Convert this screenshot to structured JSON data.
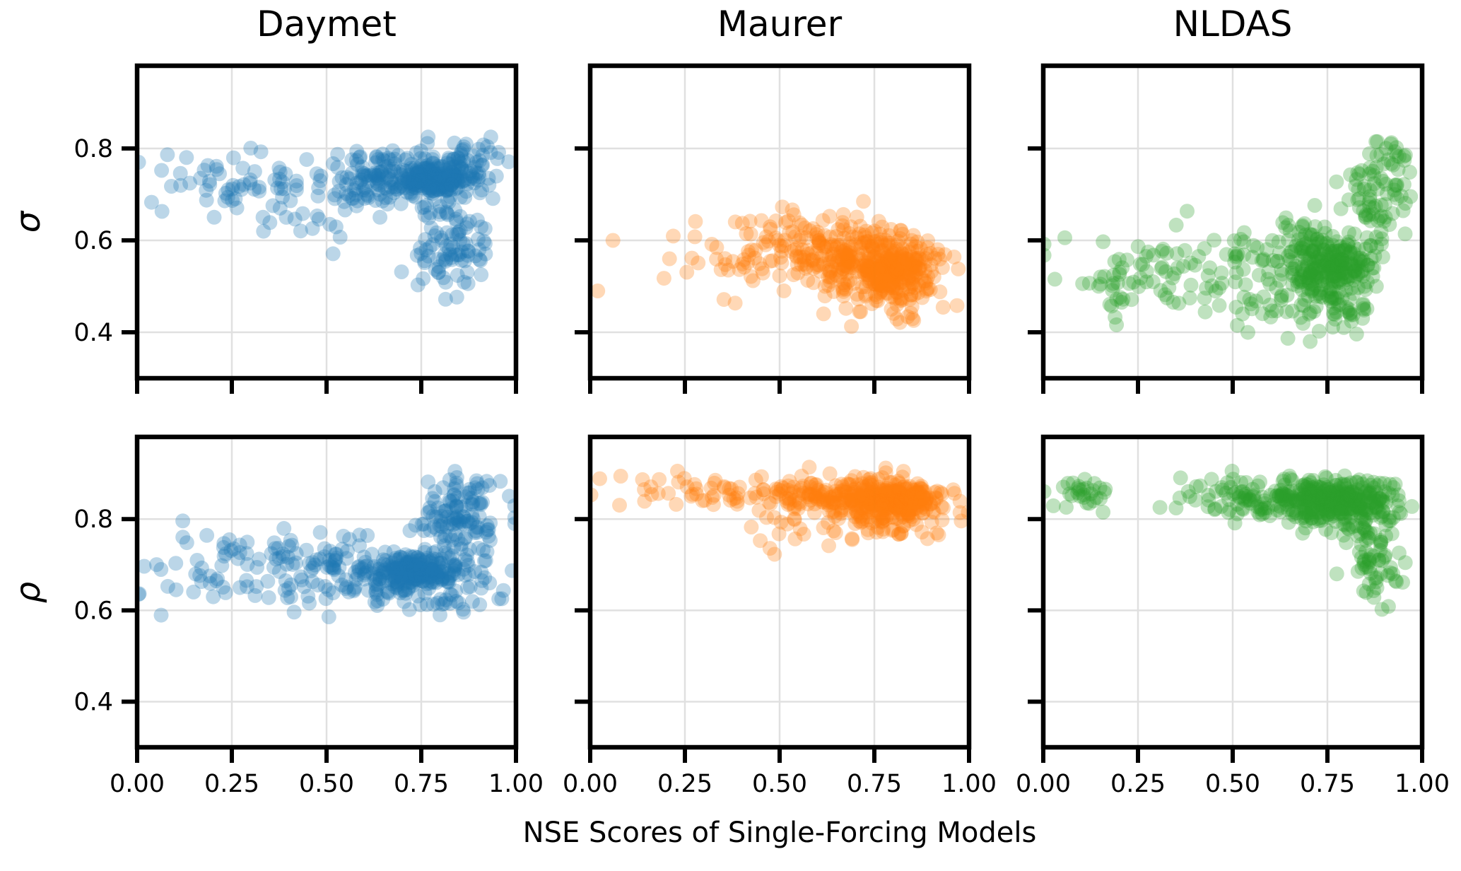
{
  "figure": {
    "background": "#ffffff",
    "xlabel": "NSE Scores of Single-Forcing Models"
  },
  "columns": [
    {
      "label": "Daymet",
      "color": "#1f77b4"
    },
    {
      "label": "Maurer",
      "color": "#ff7f0e"
    },
    {
      "label": "NLDAS",
      "color": "#2ca02c"
    }
  ],
  "rows": [
    {
      "label": "σ"
    },
    {
      "label": "ρ"
    }
  ],
  "axis": {
    "xlim": [
      0.0,
      1.0
    ],
    "ylim": [
      0.3,
      0.98
    ],
    "xticks": [
      {
        "v": 0.0,
        "label": "0.00"
      },
      {
        "v": 0.25,
        "label": "0.25"
      },
      {
        "v": 0.5,
        "label": "0.50"
      },
      {
        "v": 0.75,
        "label": "0.75"
      },
      {
        "v": 1.0,
        "label": "1.00"
      }
    ],
    "yticks": [
      {
        "v": 0.4,
        "label": "0.4"
      },
      {
        "v": 0.6,
        "label": "0.6"
      },
      {
        "v": 0.8,
        "label": "0.8"
      }
    ],
    "grid": true,
    "grid_color": "#e0e0e0",
    "spine_color": "#000000"
  },
  "marker": {
    "radius": 10.5,
    "opacity": 0.3
  },
  "chart_data": [
    {
      "type": "scatter",
      "row": "σ",
      "column": "Daymet",
      "color": "#1f77b4",
      "n_points": 532,
      "y_range": [
        0.43,
        0.825
      ],
      "clusters": [
        {
          "n": 200,
          "cx": 0.795,
          "cy": 0.738,
          "sx": 0.055,
          "sy": 0.02
        },
        {
          "n": 130,
          "cx": 0.645,
          "cy": 0.732,
          "sx": 0.075,
          "sy": 0.028
        },
        {
          "n": 95,
          "cx": 0.815,
          "cy": 0.595,
          "sx": 0.055,
          "sy": 0.055
        },
        {
          "n": 70,
          "cx": 0.3,
          "cy": 0.715,
          "sx": 0.13,
          "sy": 0.035
        },
        {
          "n": 25,
          "cx": 0.88,
          "cy": 0.79,
          "sx": 0.045,
          "sy": 0.018
        },
        {
          "n": 11,
          "cx": 0.45,
          "cy": 0.64,
          "sx": 0.1,
          "sy": 0.03
        }
      ],
      "extra_points": [
        [
          0.004,
          0.77
        ]
      ]
    },
    {
      "type": "scatter",
      "row": "σ",
      "column": "Maurer",
      "color": "#ff7f0e",
      "n_points": 533,
      "y_range": [
        0.4,
        0.685
      ],
      "clusters": [
        {
          "n": 280,
          "cx": 0.795,
          "cy": 0.545,
          "sx": 0.065,
          "sy": 0.033
        },
        {
          "n": 120,
          "cx": 0.645,
          "cy": 0.565,
          "sx": 0.08,
          "sy": 0.035
        },
        {
          "n": 60,
          "cx": 0.42,
          "cy": 0.56,
          "sx": 0.12,
          "sy": 0.04
        },
        {
          "n": 45,
          "cx": 0.8,
          "cy": 0.465,
          "sx": 0.07,
          "sy": 0.025
        },
        {
          "n": 26,
          "cx": 0.55,
          "cy": 0.63,
          "sx": 0.1,
          "sy": 0.025
        }
      ],
      "extra_points": [
        [
          0.02,
          0.49
        ],
        [
          0.06,
          0.6
        ]
      ]
    },
    {
      "type": "scatter",
      "row": "σ",
      "column": "NLDAS",
      "color": "#2ca02c",
      "n_points": 531,
      "y_range": [
        0.38,
        0.815
      ],
      "clusters": [
        {
          "n": 260,
          "cx": 0.755,
          "cy": 0.55,
          "sx": 0.065,
          "sy": 0.042
        },
        {
          "n": 75,
          "cx": 0.88,
          "cy": 0.7,
          "sx": 0.045,
          "sy": 0.055
        },
        {
          "n": 95,
          "cx": 0.555,
          "cy": 0.525,
          "sx": 0.11,
          "sy": 0.05
        },
        {
          "n": 55,
          "cx": 0.22,
          "cy": 0.51,
          "sx": 0.1,
          "sy": 0.05
        },
        {
          "n": 35,
          "cx": 0.78,
          "cy": 0.435,
          "sx": 0.09,
          "sy": 0.025
        },
        {
          "n": 11,
          "cx": 0.93,
          "cy": 0.79,
          "sx": 0.03,
          "sy": 0.015
        }
      ],
      "extra_points": []
    },
    {
      "type": "scatter",
      "row": "ρ",
      "column": "Daymet",
      "color": "#1f77b4",
      "n_points": 532,
      "y_range": [
        0.555,
        0.925
      ],
      "clusters": [
        {
          "n": 240,
          "cx": 0.745,
          "cy": 0.685,
          "sx": 0.085,
          "sy": 0.022
        },
        {
          "n": 110,
          "cx": 0.85,
          "cy": 0.805,
          "sx": 0.055,
          "sy": 0.038
        },
        {
          "n": 75,
          "cx": 0.52,
          "cy": 0.695,
          "sx": 0.1,
          "sy": 0.035
        },
        {
          "n": 65,
          "cx": 0.26,
          "cy": 0.7,
          "sx": 0.115,
          "sy": 0.038
        },
        {
          "n": 30,
          "cx": 0.74,
          "cy": 0.625,
          "sx": 0.1,
          "sy": 0.018
        },
        {
          "n": 11,
          "cx": 0.9,
          "cy": 0.875,
          "sx": 0.03,
          "sy": 0.015
        }
      ],
      "extra_points": [
        [
          0.004,
          0.635
        ]
      ]
    },
    {
      "type": "scatter",
      "row": "ρ",
      "column": "Maurer",
      "color": "#ff7f0e",
      "n_points": 531,
      "y_range": [
        0.71,
        0.92
      ],
      "clusters": [
        {
          "n": 300,
          "cx": 0.795,
          "cy": 0.843,
          "sx": 0.075,
          "sy": 0.022
        },
        {
          "n": 120,
          "cx": 0.6,
          "cy": 0.85,
          "sx": 0.1,
          "sy": 0.02
        },
        {
          "n": 45,
          "cx": 0.27,
          "cy": 0.858,
          "sx": 0.13,
          "sy": 0.018
        },
        {
          "n": 55,
          "cx": 0.77,
          "cy": 0.79,
          "sx": 0.09,
          "sy": 0.02
        },
        {
          "n": 11,
          "cx": 0.5,
          "cy": 0.77,
          "sx": 0.06,
          "sy": 0.02
        }
      ],
      "extra_points": []
    },
    {
      "type": "scatter",
      "row": "ρ",
      "column": "NLDAS",
      "color": "#2ca02c",
      "n_points": 531,
      "y_range": [
        0.585,
        0.92
      ],
      "clusters": [
        {
          "n": 280,
          "cx": 0.775,
          "cy": 0.842,
          "sx": 0.075,
          "sy": 0.024
        },
        {
          "n": 115,
          "cx": 0.565,
          "cy": 0.848,
          "sx": 0.115,
          "sy": 0.022
        },
        {
          "n": 30,
          "cx": 0.1,
          "cy": 0.856,
          "sx": 0.055,
          "sy": 0.018
        },
        {
          "n": 66,
          "cx": 0.875,
          "cy": 0.71,
          "sx": 0.038,
          "sy": 0.055
        },
        {
          "n": 40,
          "cx": 0.78,
          "cy": 0.8,
          "sx": 0.09,
          "sy": 0.022
        }
      ],
      "extra_points": []
    }
  ]
}
